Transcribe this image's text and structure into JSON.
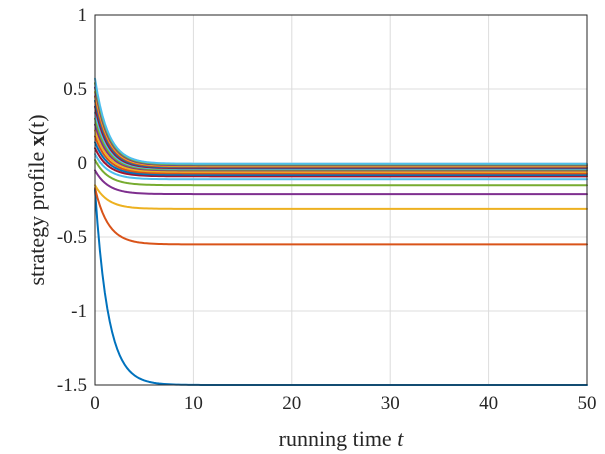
{
  "chart_data": {
    "type": "line",
    "title": "",
    "xlabel": "running time",
    "xlabel_var": "t",
    "ylabel": "strategy profile",
    "ylabel_vec": "x",
    "ylabel_arg": "(t)",
    "xlim": [
      0,
      50
    ],
    "ylim": [
      -1.5,
      1
    ],
    "xticks": [
      0,
      10,
      20,
      30,
      40,
      50
    ],
    "yticks": [
      -1.5,
      -1,
      -0.5,
      0,
      0.5,
      1
    ],
    "xtick_labels": [
      "0",
      "10",
      "20",
      "30",
      "40",
      "50"
    ],
    "ytick_labels": [
      "-1.5",
      "-1",
      "-0.5",
      "0",
      "0.5",
      "1"
    ],
    "grid": true,
    "legend": false,
    "decay_rate": 0.75,
    "series": [
      {
        "initial": -0.18,
        "final": -1.5,
        "color": "#0072BD"
      },
      {
        "initial": -0.17,
        "final": -0.55,
        "color": "#D95319"
      },
      {
        "initial": -0.15,
        "final": -0.31,
        "color": "#EDB120"
      },
      {
        "initial": -0.05,
        "final": -0.21,
        "color": "#7E2F8E"
      },
      {
        "initial": 0.02,
        "final": -0.15,
        "color": "#77AC30"
      },
      {
        "initial": 0.06,
        "final": -0.11,
        "color": "#4DBEEE"
      },
      {
        "initial": 0.1,
        "final": -0.09,
        "color": "#A2142F"
      },
      {
        "initial": 0.14,
        "final": -0.08,
        "color": "#0072BD"
      },
      {
        "initial": 0.18,
        "final": -0.07,
        "color": "#D95319"
      },
      {
        "initial": 0.22,
        "final": -0.06,
        "color": "#EDB120"
      },
      {
        "initial": 0.26,
        "final": -0.05,
        "color": "#7E2F8E"
      },
      {
        "initial": 0.3,
        "final": -0.045,
        "color": "#77AC30"
      },
      {
        "initial": 0.34,
        "final": -0.04,
        "color": "#4DBEEE"
      },
      {
        "initial": 0.38,
        "final": -0.035,
        "color": "#A2142F"
      },
      {
        "initial": 0.42,
        "final": -0.03,
        "color": "#0072BD"
      },
      {
        "initial": 0.45,
        "final": -0.025,
        "color": "#D95319"
      },
      {
        "initial": 0.48,
        "final": -0.02,
        "color": "#EDB120"
      },
      {
        "initial": 0.51,
        "final": -0.015,
        "color": "#7E2F8E"
      },
      {
        "initial": 0.54,
        "final": -0.01,
        "color": "#77AC30"
      },
      {
        "initial": 0.57,
        "final": -0.005,
        "color": "#4DBEEE"
      }
    ]
  }
}
